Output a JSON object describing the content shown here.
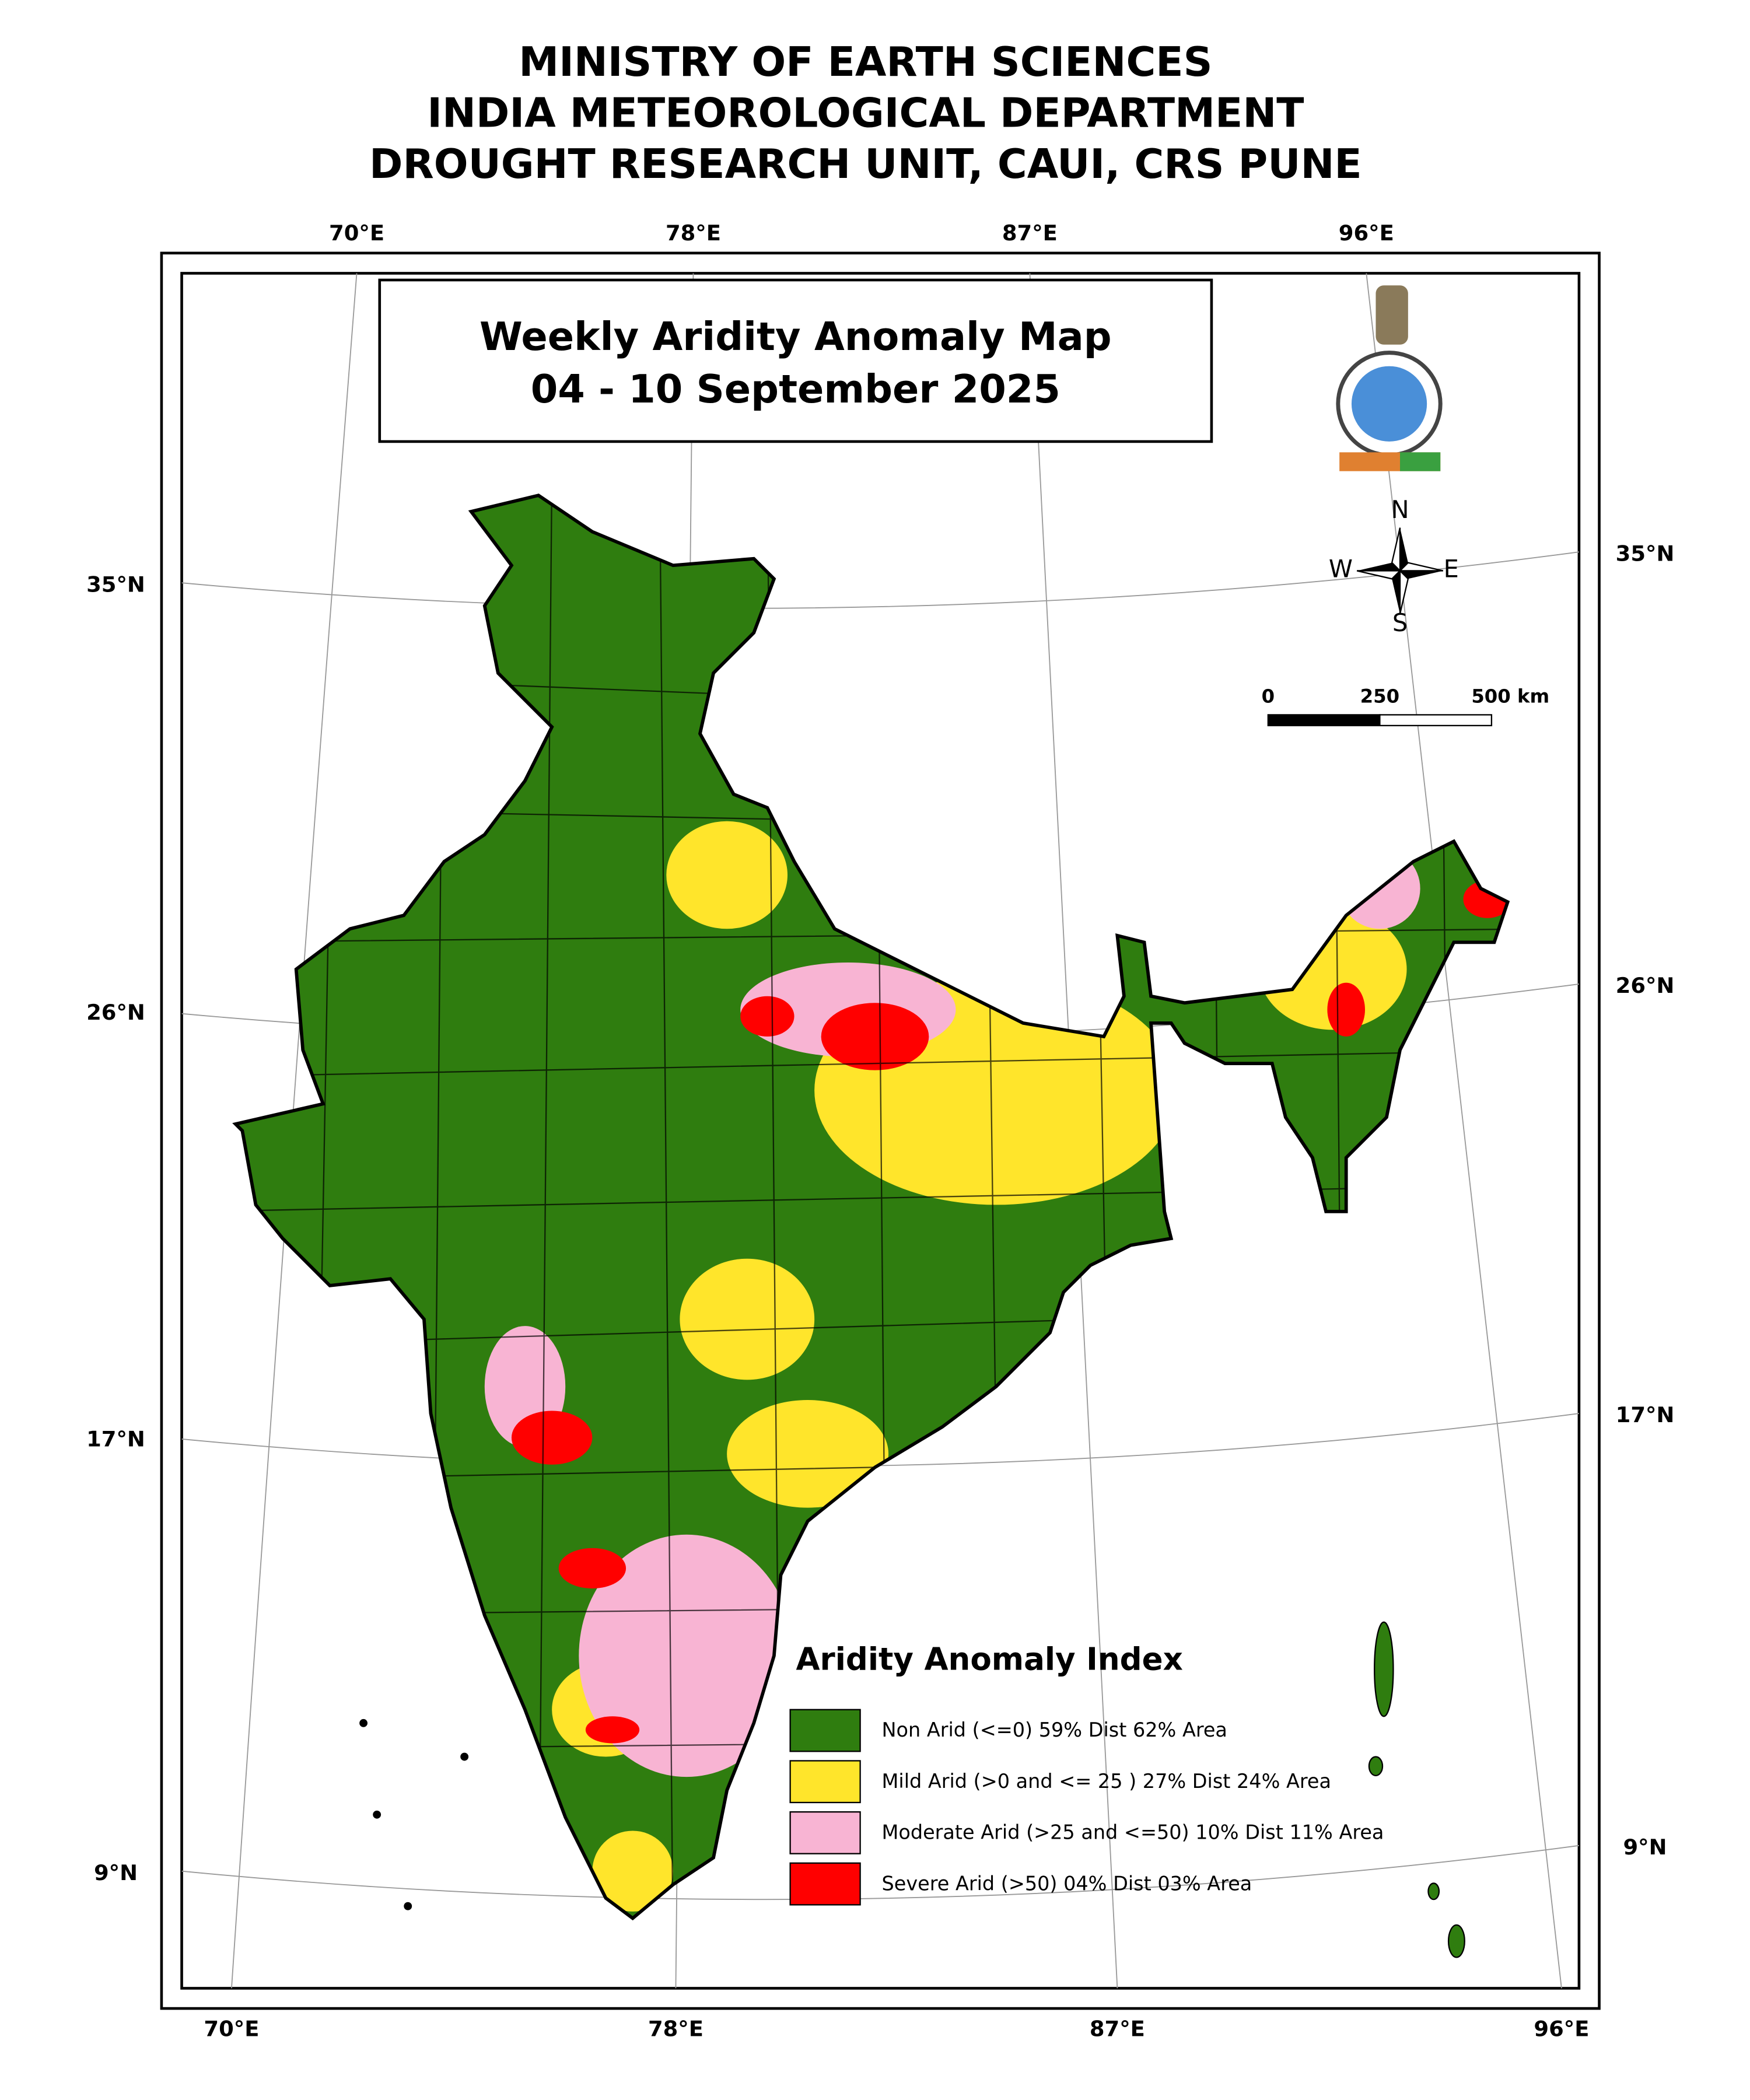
{
  "header": {
    "lines": [
      "MINISTRY OF EARTH SCIENCES",
      "INDIA METEOROLOGICAL DEPARTMENT",
      "DROUGHT RESEARCH UNIT, CAUI, CRS PUNE"
    ]
  },
  "map": {
    "title": "Weekly Aridity Anomaly Map",
    "date": "04 - 10 September  2025"
  },
  "graticule": {
    "top": [
      "70°E",
      "78°E",
      "87°E",
      "96°E"
    ],
    "bottom": [
      "70°E",
      "78°E",
      "87°E",
      "96°E"
    ],
    "left": [
      "35°N",
      "26°N",
      "17°N",
      "9°N"
    ],
    "right": [
      "35°N",
      "26°N",
      "17°N",
      "9°N"
    ]
  },
  "compass": {
    "n": "N",
    "e": "E",
    "s": "S",
    "w": "W"
  },
  "scale_bar": {
    "labels": [
      "0",
      "250",
      "500 km"
    ]
  },
  "legend": {
    "title": "Aridity Anomaly Index",
    "items": [
      {
        "label": "Non Arid (<=0) 59% Dist 62% Area",
        "color": "#2f7d0f"
      },
      {
        "label": "Mild Arid (>0 and <= 25 ) 27% Dist  24% Area",
        "color": "#ffe52b"
      },
      {
        "label": "Moderate Arid (>25 and <=50) 10% Dist 11% Area",
        "color": "#f8b4d3"
      },
      {
        "label": "Severe Arid (>50) 04% Dist  03% Area",
        "color": "#ff0000"
      }
    ]
  }
}
